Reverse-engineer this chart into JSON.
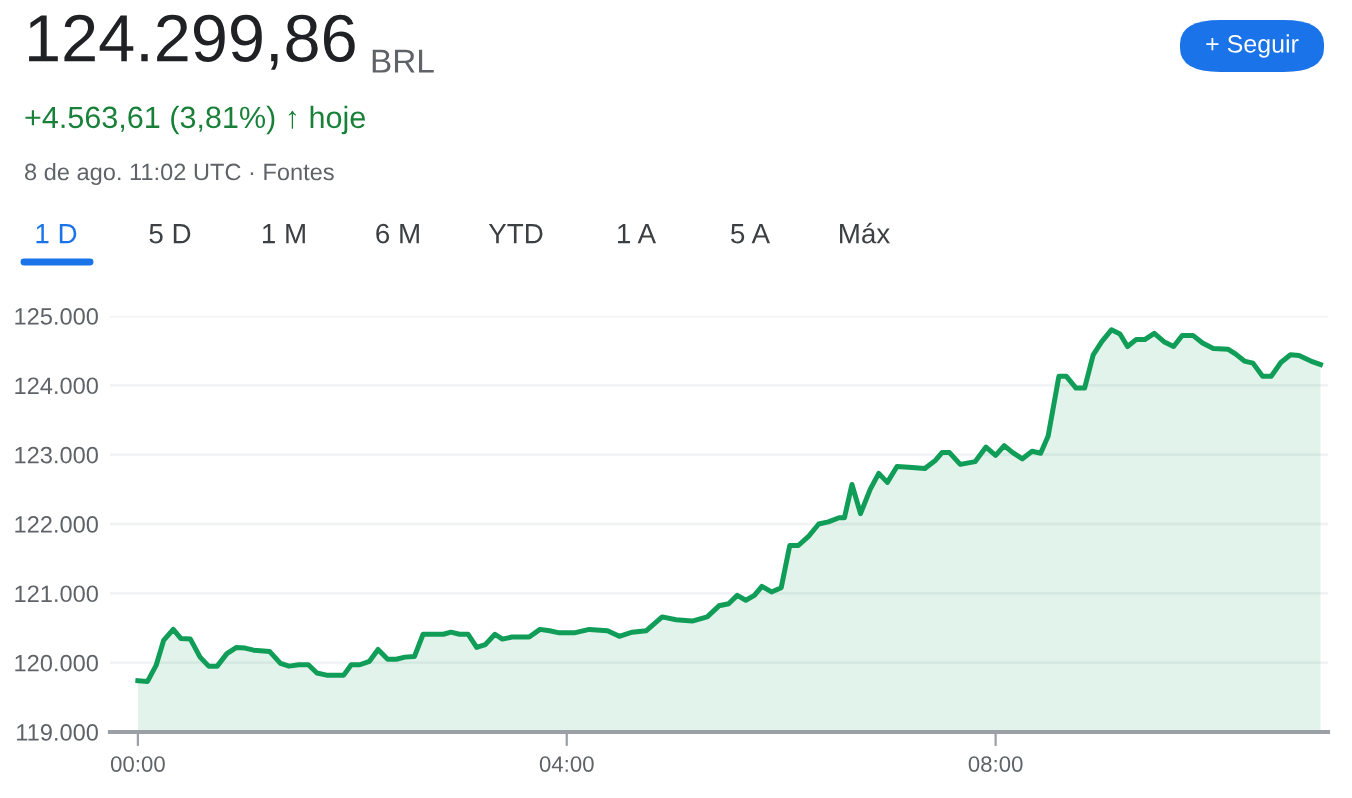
{
  "chart_data": {
    "type": "area",
    "title": "124.299,86",
    "annotations": [
      "BRL",
      "+4.563,61 (3,81%) ↑ hoje",
      "8 de ago. 11:02 UTC · Fontes",
      "1 D",
      "5 D",
      "1 M",
      "6 M",
      "YTD",
      "1 A",
      "5 A",
      "Máx",
      "+ Seguir"
    ],
    "x": [
      0,
      0.09,
      0.17,
      0.24,
      0.33,
      0.4,
      0.49,
      0.58,
      0.66,
      0.74,
      0.83,
      0.92,
      1.0,
      1.08,
      1.23,
      1.33,
      1.41,
      1.5,
      1.59,
      1.67,
      1.76,
      1.92,
      1.99,
      2.07,
      2.16,
      2.24,
      2.33,
      2.41,
      2.49,
      2.58,
      2.66,
      2.75,
      2.85,
      2.92,
      3.0,
      3.08,
      3.16,
      3.24,
      3.33,
      3.4,
      3.49,
      3.65,
      3.75,
      3.84,
      3.93,
      4.07,
      4.21,
      4.38,
      4.49,
      4.61,
      4.74,
      4.89,
      5.02,
      5.17,
      5.31,
      5.42,
      5.51,
      5.59,
      5.67,
      5.75,
      5.82,
      5.91,
      6.0,
      6.08,
      6.16,
      6.26,
      6.35,
      6.44,
      6.54,
      6.59,
      6.66,
      6.74,
      6.83,
      6.91,
      6.99,
      7.08,
      7.19,
      7.34,
      7.44,
      7.5,
      7.57,
      7.67,
      7.81,
      7.91,
      8.0,
      8.08,
      8.16,
      8.25,
      8.34,
      8.42,
      8.49,
      8.59,
      8.66,
      8.75,
      8.83,
      8.91,
      8.99,
      9.08,
      9.16,
      9.23,
      9.31,
      9.39,
      9.48,
      9.57,
      9.66,
      9.74,
      9.84,
      9.93,
      10.03,
      10.17,
      10.24,
      10.32,
      10.4,
      10.49,
      10.57,
      10.66,
      10.75,
      10.83,
      10.94,
      11.03
    ],
    "series": [
      {
        "color": "#0f9d58",
        "values": [
          119740,
          119730,
          119960,
          120320,
          120480,
          120350,
          120340,
          120080,
          119950,
          119950,
          120130,
          120220,
          120210,
          120180,
          120160,
          119990,
          119950,
          119970,
          119970,
          119850,
          119820,
          119820,
          119970,
          119970,
          120020,
          120190,
          120050,
          120050,
          120080,
          120090,
          120410,
          120410,
          120410,
          120440,
          120410,
          120410,
          120220,
          120260,
          120410,
          120340,
          120370,
          120370,
          120480,
          120460,
          120430,
          120430,
          120480,
          120460,
          120380,
          120440,
          120460,
          120660,
          120620,
          120600,
          120660,
          120820,
          120850,
          120970,
          120900,
          120970,
          121100,
          121020,
          121080,
          121690,
          121690,
          121830,
          122000,
          122030,
          122090,
          122090,
          122570,
          122150,
          122500,
          122730,
          122600,
          122830,
          122820,
          122800,
          122920,
          123030,
          123030,
          122860,
          122900,
          123110,
          122990,
          123130,
          123030,
          122940,
          123050,
          123020,
          123270,
          124130,
          124130,
          123960,
          123960,
          124440,
          124630,
          124800,
          124740,
          124560,
          124660,
          124660,
          124750,
          124630,
          124560,
          124720,
          124720,
          124610,
          124530,
          124520,
          124450,
          124350,
          124320,
          124130,
          124130,
          124330,
          124440,
          124430,
          124350,
          124300
        ]
      }
    ],
    "xlim": [
      -0.26,
      11.1
    ],
    "ylim": [
      119000,
      125000
    ],
    "xticks": [
      {
        "value": 0,
        "label": "00:00"
      },
      {
        "value": 4,
        "label": "04:00"
      },
      {
        "value": 8,
        "label": "08:00"
      }
    ],
    "yticks": [
      {
        "value": 119000,
        "label": "119.000"
      },
      {
        "value": 120000,
        "label": "120.000"
      },
      {
        "value": 121000,
        "label": "121.000"
      },
      {
        "value": 122000,
        "label": "122.000"
      },
      {
        "value": 123000,
        "label": "123.000"
      },
      {
        "value": 124000,
        "label": "124.000"
      },
      {
        "value": 125000,
        "label": "125.000"
      }
    ],
    "grid": "y",
    "legend": false
  }
}
